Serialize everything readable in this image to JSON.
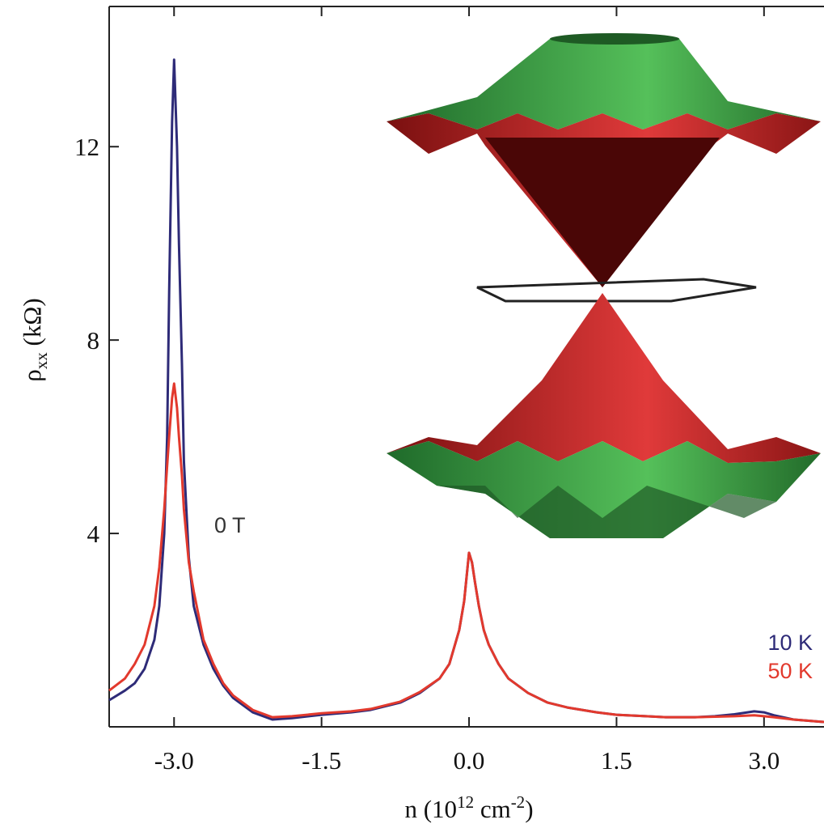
{
  "chart_data": {
    "type": "line",
    "xlabel_parts": [
      "n  (10",
      "12",
      "  cm",
      "-2",
      ")"
    ],
    "ylabel_parts": [
      "ρ",
      "xx",
      "  (kΩ)"
    ],
    "annotation": "0 T",
    "x": [
      -3.66,
      -3.5,
      -3.4,
      -3.3,
      -3.2,
      -3.15,
      -3.1,
      -3.07,
      -3.05,
      -3.02,
      -3.0,
      -2.97,
      -2.95,
      -2.92,
      -2.9,
      -2.85,
      -2.8,
      -2.7,
      -2.6,
      -2.5,
      -2.4,
      -2.2,
      -2.0,
      -1.8,
      -1.5,
      -1.2,
      -1.0,
      -0.7,
      -0.5,
      -0.3,
      -0.2,
      -0.1,
      -0.05,
      -0.02,
      0.0,
      0.03,
      0.06,
      0.1,
      0.15,
      0.2,
      0.3,
      0.4,
      0.6,
      0.8,
      1.0,
      1.3,
      1.5,
      1.8,
      2.0,
      2.3,
      2.5,
      2.7,
      2.9,
      3.0,
      3.1,
      3.3,
      3.61
    ],
    "series": [
      {
        "name": "10 K",
        "color": "#2e2b78",
        "values": [
          0.55,
          0.75,
          0.9,
          1.2,
          1.8,
          2.5,
          4.0,
          6.0,
          9.0,
          12.5,
          13.8,
          12.0,
          10.0,
          7.5,
          5.5,
          3.5,
          2.5,
          1.7,
          1.2,
          0.85,
          0.6,
          0.3,
          0.15,
          0.18,
          0.25,
          0.3,
          0.35,
          0.5,
          0.7,
          1.0,
          1.3,
          2.0,
          2.6,
          3.2,
          3.6,
          3.4,
          3.0,
          2.5,
          2.0,
          1.7,
          1.3,
          1.0,
          0.7,
          0.5,
          0.4,
          0.3,
          0.25,
          0.22,
          0.2,
          0.2,
          0.22,
          0.26,
          0.32,
          0.3,
          0.24,
          0.15,
          0.1
        ]
      },
      {
        "name": "50 K",
        "color": "#e2392d",
        "values": [
          0.75,
          1.0,
          1.3,
          1.7,
          2.5,
          3.3,
          4.5,
          5.4,
          6.0,
          6.8,
          7.1,
          6.6,
          6.0,
          5.2,
          4.5,
          3.4,
          2.8,
          1.8,
          1.3,
          0.9,
          0.65,
          0.35,
          0.2,
          0.22,
          0.28,
          0.32,
          0.37,
          0.52,
          0.72,
          1.0,
          1.3,
          2.0,
          2.6,
          3.2,
          3.6,
          3.4,
          3.0,
          2.5,
          2.0,
          1.7,
          1.3,
          1.0,
          0.7,
          0.5,
          0.4,
          0.3,
          0.25,
          0.22,
          0.2,
          0.2,
          0.21,
          0.22,
          0.24,
          0.22,
          0.2,
          0.15,
          0.1
        ]
      }
    ],
    "xlim": [
      -3.66,
      3.61
    ],
    "ylim": [
      0,
      14.9
    ],
    "xticks": [
      {
        "value": -3,
        "label": "-3.0"
      },
      {
        "value": -1.5,
        "label": "-1.5"
      },
      {
        "value": 0,
        "label": "0.0"
      },
      {
        "value": 1.5,
        "label": "1.5"
      },
      {
        "value": 3,
        "label": "3.0"
      }
    ],
    "yticks": [
      4,
      8,
      12
    ],
    "grid": false,
    "legend": "lower right"
  }
}
